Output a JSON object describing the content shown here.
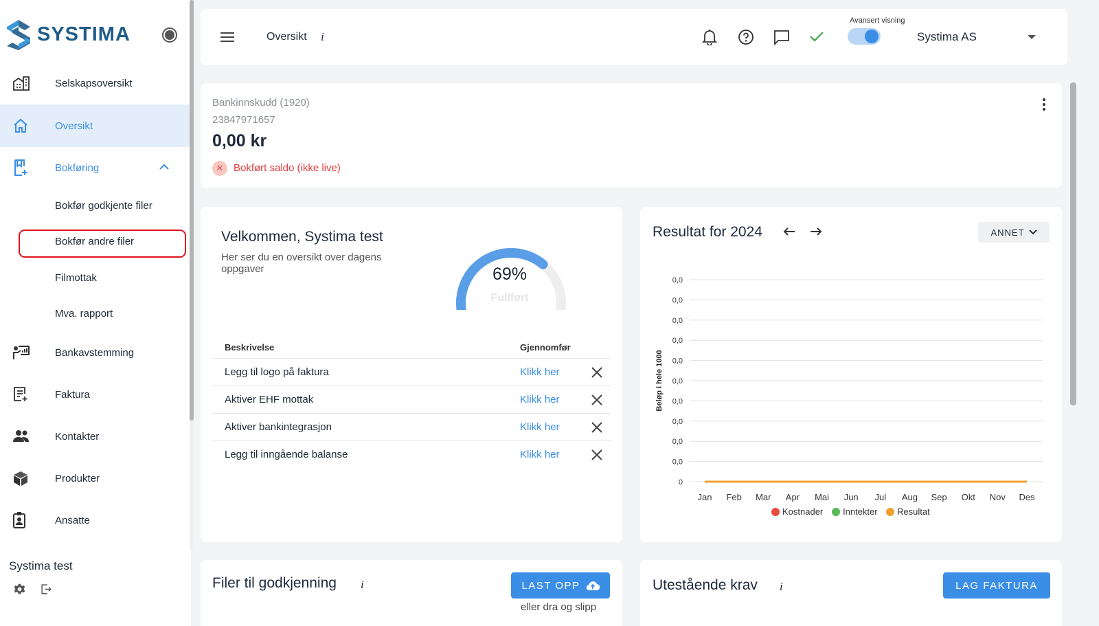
{
  "brand": {
    "name": "SYSTIMA"
  },
  "sidebar": {
    "items": [
      {
        "label": "Selskapsoversikt",
        "icon": "buildings-icon"
      },
      {
        "label": "Oversikt",
        "icon": "home-icon"
      },
      {
        "label": "Bokføring",
        "icon": "bookmark-plus-icon"
      },
      {
        "label": "Bankavstemming",
        "icon": "presenter-icon"
      },
      {
        "label": "Faktura",
        "icon": "invoice-icon"
      },
      {
        "label": "Kontakter",
        "icon": "people-icon"
      },
      {
        "label": "Produkter",
        "icon": "box-icon"
      },
      {
        "label": "Ansatte",
        "icon": "badge-icon"
      }
    ],
    "subitems": [
      "Bokfør godkjente filer",
      "Bokfør andre filer",
      "Filmottak",
      "Mva. rapport"
    ],
    "user": "Systima test"
  },
  "header": {
    "title": "Oversikt",
    "info": "i",
    "advanced_label": "Avansert visning",
    "company": "Systima AS"
  },
  "bank": {
    "name": "Bankinnskudd (1920)",
    "account": "23847971657",
    "amount": "0,00 kr",
    "status": "Bokført saldo (ikke live)"
  },
  "welcome": {
    "title": "Velkommen, Systima test",
    "subtitle": "Her ser du en oversikt over dagens oppgaver",
    "progress_text": "69%",
    "progress": 69,
    "progress_label": "Fullført",
    "col_description": "Beskrivelse",
    "col_action": "Gjennomfør",
    "tasks": [
      {
        "desc": "Legg til logo på faktura",
        "action": "Klikk her"
      },
      {
        "desc": "Aktiver EHF mottak",
        "action": "Klikk her"
      },
      {
        "desc": "Aktiver bankintegrasjon",
        "action": "Klikk her"
      },
      {
        "desc": "Legg til inngående balanse",
        "action": "Klikk her"
      }
    ]
  },
  "result": {
    "title": "Resultat for 2024",
    "filter": "ANNET"
  },
  "chart_data": {
    "type": "line",
    "title": "",
    "categories": [
      "Jan",
      "Feb",
      "Mar",
      "Apr",
      "Mai",
      "Jun",
      "Jul",
      "Aug",
      "Sep",
      "Okt",
      "Nov",
      "Des"
    ],
    "ylabel": "Beløp i hele 1000",
    "y_tick_labels": [
      "0,0",
      "0,0",
      "0,0",
      "0,0",
      "0,0",
      "0,0",
      "0,0",
      "0,0",
      "0,0",
      "0,0",
      "0"
    ],
    "legend_position": "bottom",
    "series": [
      {
        "name": "Kostnader",
        "color": "#e74c3c",
        "values": [
          0,
          0,
          0,
          0,
          0,
          0,
          0,
          0,
          0,
          0,
          0,
          0
        ]
      },
      {
        "name": "Inntekter",
        "color": "#5cb85c",
        "values": [
          0,
          0,
          0,
          0,
          0,
          0,
          0,
          0,
          0,
          0,
          0,
          0
        ]
      },
      {
        "name": "Resultat",
        "color": "#f0a030",
        "values": [
          0,
          0,
          0,
          0,
          0,
          0,
          0,
          0,
          0,
          0,
          0,
          0
        ]
      }
    ]
  },
  "files": {
    "title": "Filer til godkjenning",
    "info": "i",
    "upload_label": "LAST OPP",
    "drop_text": "eller dra og slipp"
  },
  "claims": {
    "title": "Utestående krav",
    "info": "i",
    "button_label": "LAG FAKTURA"
  },
  "colors": {
    "accent": "#3a8ee6",
    "error": "#e03c3c",
    "highlight": "#e0141e"
  }
}
